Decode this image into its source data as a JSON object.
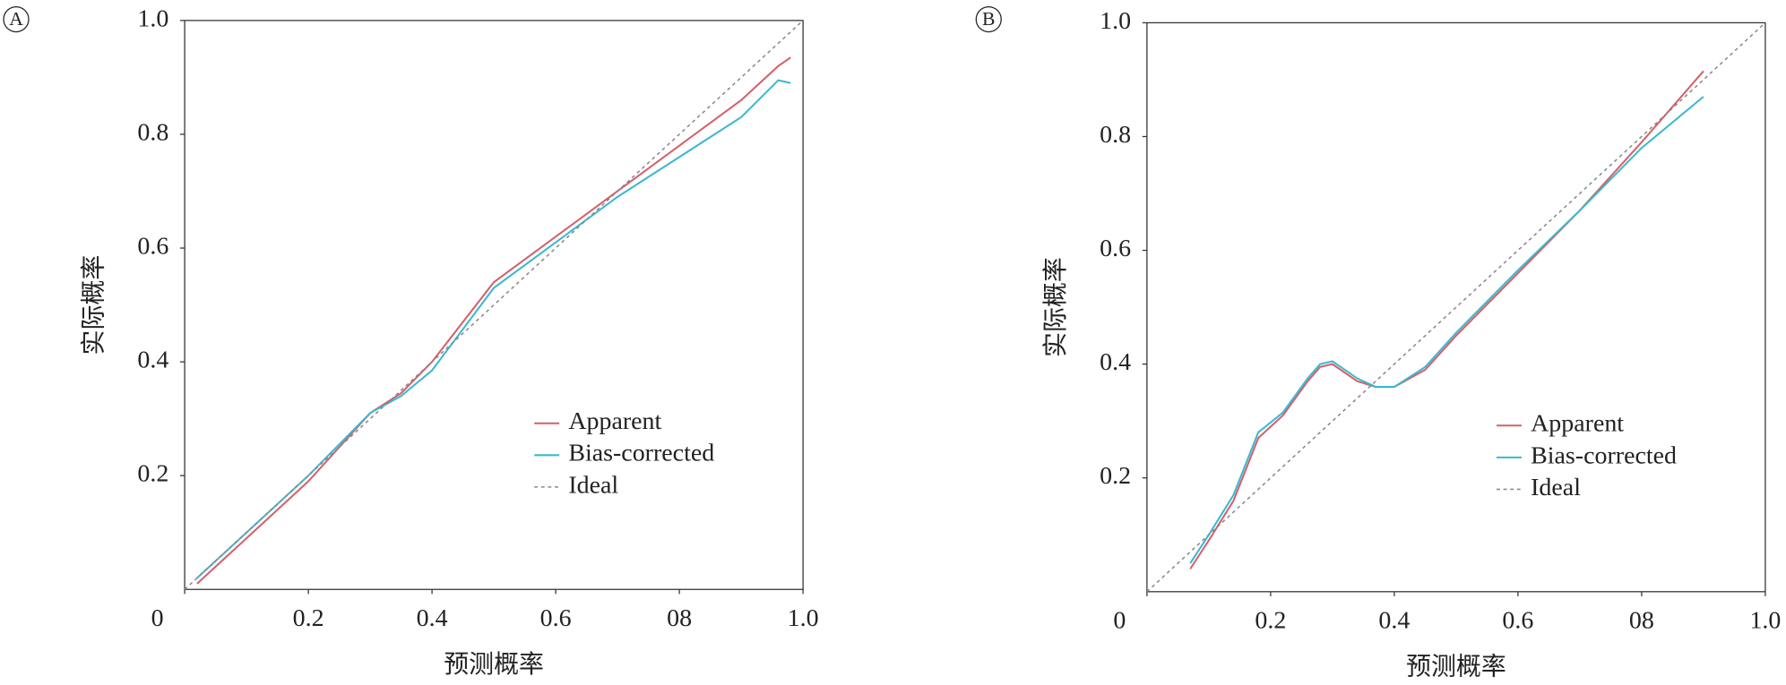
{
  "chart_data": [
    {
      "type": "line",
      "panel_label": "A",
      "xlabel": "预测概率",
      "ylabel": "实际概率",
      "xlim": [
        0,
        1
      ],
      "ylim": [
        0,
        1
      ],
      "xticks": [
        0,
        0.2,
        0.4,
        0.6,
        {
          "value": 0.8,
          "label": "08"
        },
        {
          "value": 1,
          "label": "1.0"
        }
      ],
      "yticks": [
        0.2,
        0.4,
        0.6,
        0.8,
        {
          "value": 1,
          "label": "1.0"
        }
      ],
      "legend": "lower right",
      "series": [
        {
          "name": "Apparent",
          "color": "#d4606a",
          "x": [
            0.02,
            0.1,
            0.2,
            0.3,
            0.35,
            0.4,
            0.5,
            0.6,
            0.7,
            0.8,
            0.9,
            0.96,
            0.98
          ],
          "values": [
            0.01,
            0.09,
            0.19,
            0.31,
            0.345,
            0.4,
            0.54,
            0.62,
            0.7,
            0.78,
            0.86,
            0.92,
            0.935
          ]
        },
        {
          "name": "Bias-corrected",
          "color": "#3bb8d0",
          "x": [
            0.02,
            0.1,
            0.2,
            0.3,
            0.35,
            0.4,
            0.5,
            0.6,
            0.7,
            0.8,
            0.9,
            0.96,
            0.98
          ],
          "values": [
            0.02,
            0.1,
            0.2,
            0.31,
            0.34,
            0.385,
            0.53,
            0.61,
            0.69,
            0.76,
            0.83,
            0.895,
            0.89
          ]
        },
        {
          "name": "Ideal",
          "color": "#888888",
          "dashed": true,
          "x": [
            0,
            1
          ],
          "values": [
            0,
            1
          ]
        }
      ]
    },
    {
      "type": "line",
      "panel_label": "B",
      "xlabel": "预测概率",
      "ylabel": "实际概率",
      "xlim": [
        0,
        1
      ],
      "ylim": [
        0,
        1
      ],
      "xticks": [
        0,
        0.2,
        0.4,
        0.6,
        {
          "value": 0.8,
          "label": "08"
        },
        {
          "value": 1,
          "label": "1.0"
        }
      ],
      "yticks": [
        0.2,
        0.4,
        0.6,
        0.8,
        {
          "value": 1,
          "label": "1.0"
        }
      ],
      "legend": "lower right",
      "series": [
        {
          "name": "Apparent",
          "color": "#d4606a",
          "x": [
            0.07,
            0.1,
            0.14,
            0.18,
            0.22,
            0.26,
            0.28,
            0.3,
            0.34,
            0.37,
            0.4,
            0.45,
            0.5,
            0.6,
            0.7,
            0.8,
            0.9
          ],
          "values": [
            0.04,
            0.09,
            0.16,
            0.27,
            0.31,
            0.37,
            0.395,
            0.4,
            0.37,
            0.36,
            0.36,
            0.39,
            0.45,
            0.56,
            0.67,
            0.79,
            0.915
          ]
        },
        {
          "name": "Bias-corrected",
          "color": "#3bb8d0",
          "x": [
            0.07,
            0.1,
            0.14,
            0.18,
            0.22,
            0.26,
            0.28,
            0.3,
            0.34,
            0.37,
            0.4,
            0.45,
            0.5,
            0.6,
            0.7,
            0.8,
            0.9
          ],
          "values": [
            0.05,
            0.1,
            0.17,
            0.28,
            0.315,
            0.375,
            0.4,
            0.405,
            0.375,
            0.36,
            0.36,
            0.395,
            0.455,
            0.565,
            0.67,
            0.78,
            0.87
          ]
        },
        {
          "name": "Ideal",
          "color": "#888888",
          "dashed": true,
          "x": [
            0,
            1
          ],
          "values": [
            0,
            1
          ]
        }
      ]
    }
  ]
}
